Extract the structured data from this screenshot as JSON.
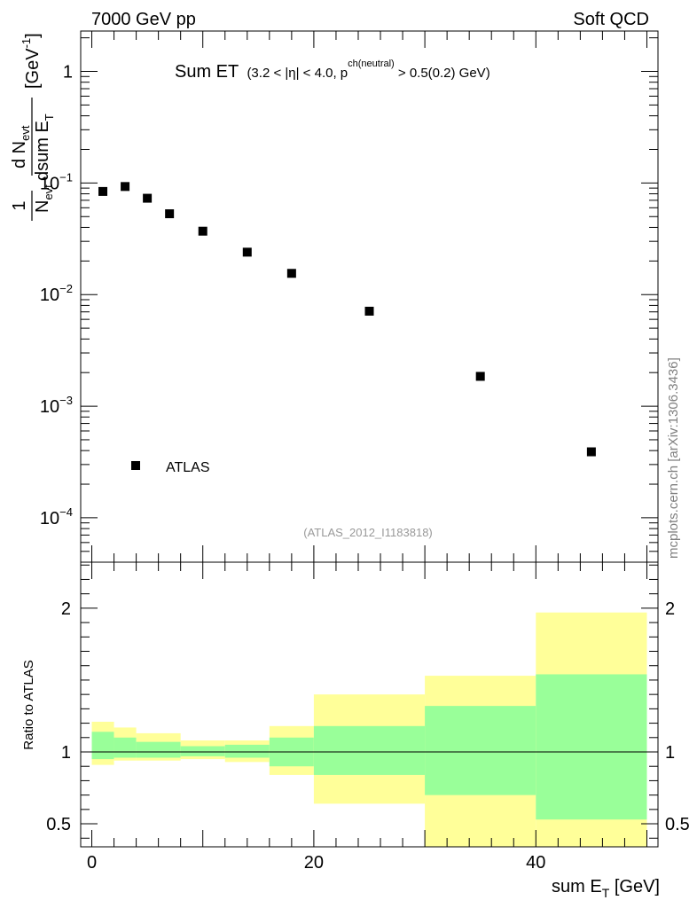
{
  "header": {
    "left": "7000 GeV pp",
    "right": "Soft QCD"
  },
  "watermark": "mcplots.cern.ch [arXiv:1306.3436]",
  "colors": {
    "data_marker": "#000000",
    "band_outer": "#ffff99",
    "band_inner": "#99ff99",
    "ref_line": "#000000"
  },
  "chart_data": [
    {
      "type": "scatter",
      "title": "Sum ET",
      "title_sub": "(3.2 < |η| < 4.0, p",
      "title_sup": "ch(neutral)",
      "title_tail": " > 0.5(0.2) GeV)",
      "ylabel_parts": {
        "frac1_num": "1",
        "frac1_den": "N",
        "frac1_den_sub": "evt",
        "frac2_num": "d N",
        "frac2_num_sub": "evt",
        "frac2_den": "dsum E",
        "frac2_den_sub": "T",
        "units": "[GeV",
        "units_sup": "-1",
        "units_close": "]"
      },
      "yscale": "log",
      "ylim": [
        4e-05,
        2.3
      ],
      "xlim": [
        -1,
        51
      ],
      "ytick_labels": [
        "10",
        "10",
        "10",
        "10",
        "1"
      ],
      "ytick_exponents": [
        "-4",
        "-3",
        "-2",
        "-1",
        ""
      ],
      "legend": "ATLAS",
      "legend_position": "lower-left",
      "analysis_label": "(ATLAS_2012_I1183818)",
      "series": [
        {
          "name": "ATLAS",
          "x": [
            1,
            3,
            5,
            7,
            10,
            14,
            18,
            25,
            35,
            45
          ],
          "y": [
            0.084,
            0.093,
            0.073,
            0.053,
            0.037,
            0.024,
            0.0155,
            0.0071,
            0.00185,
            0.00039
          ]
        }
      ]
    },
    {
      "type": "area",
      "ylabel": "Ratio to ATLAS",
      "xlabel": "sum E",
      "xlabel_sub": "T",
      "xlabel_units": " [GeV]",
      "ylim": [
        0.34,
        2.32
      ],
      "xlim": [
        -1,
        51
      ],
      "ytick_labels": [
        "0.5",
        "1",
        "2"
      ],
      "xtick_labels": [
        "0",
        "20",
        "40"
      ],
      "bins": [
        {
          "x0": 0,
          "x1": 2,
          "outer": [
            0.91,
            1.21
          ],
          "inner": [
            0.95,
            1.14
          ]
        },
        {
          "x0": 2,
          "x1": 4,
          "outer": [
            0.94,
            1.17
          ],
          "inner": [
            0.96,
            1.1
          ]
        },
        {
          "x0": 4,
          "x1": 8,
          "outer": [
            0.94,
            1.13
          ],
          "inner": [
            0.96,
            1.07
          ]
        },
        {
          "x0": 8,
          "x1": 12,
          "outer": [
            0.95,
            1.08
          ],
          "inner": [
            0.97,
            1.04
          ]
        },
        {
          "x0": 12,
          "x1": 16,
          "outer": [
            0.93,
            1.08
          ],
          "inner": [
            0.96,
            1.05
          ]
        },
        {
          "x0": 16,
          "x1": 20,
          "outer": [
            0.84,
            1.18
          ],
          "inner": [
            0.9,
            1.1
          ]
        },
        {
          "x0": 20,
          "x1": 30,
          "outer": [
            0.64,
            1.4
          ],
          "inner": [
            0.84,
            1.18
          ]
        },
        {
          "x0": 30,
          "x1": 40,
          "outer": [
            0.34,
            1.53
          ],
          "inner": [
            0.7,
            1.32
          ]
        },
        {
          "x0": 40,
          "x1": 50,
          "outer": [
            0.34,
            1.97
          ],
          "inner": [
            0.53,
            1.54
          ]
        }
      ],
      "reference": 1
    }
  ]
}
